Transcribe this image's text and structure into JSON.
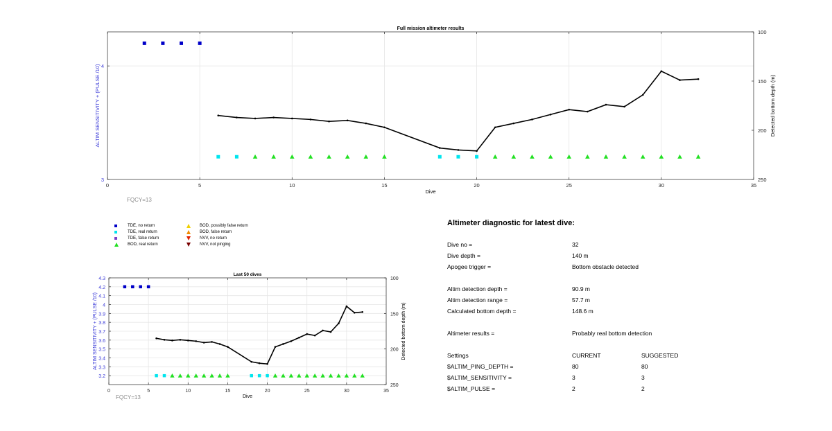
{
  "top_chart": {
    "title": "Full mission altimeter results",
    "xlabel": "Dive",
    "ylabel_left": "ALTIM SENSITIVITY + (PULSE /10)",
    "ylabel_right": "Detected bottom depth (m)",
    "annotation": "FQCY=13"
  },
  "bottom_chart": {
    "title": "Last 50 dives",
    "xlabel": "Dive",
    "ylabel_left": "ALTIM SENSITIVITY + (PULSE /10)",
    "ylabel_right": "Detected bottom depth (m)",
    "annotation": "FQCY=13"
  },
  "legend": {
    "items": [
      {
        "label": "TDE, no return",
        "color": "#0000c8",
        "shape": "square"
      },
      {
        "label": "TDE, real return",
        "color": "#00e5ee",
        "shape": "square"
      },
      {
        "label": "TDE, false return",
        "color": "#7b3fc8",
        "shape": "square"
      },
      {
        "label": "BOD, real return",
        "color": "#22e022",
        "shape": "triangle-up"
      },
      {
        "label": "BOD, possibly false return",
        "color": "#f0d000",
        "shape": "triangle-up"
      },
      {
        "label": "BOD, false return",
        "color": "#f08c00",
        "shape": "triangle-up"
      },
      {
        "label": "NVV, no return",
        "color": "#e02000",
        "shape": "triangle-down"
      },
      {
        "label": "NVV, not pinging",
        "color": "#7a0000",
        "shape": "triangle-down"
      }
    ]
  },
  "diagnostic": {
    "title": "Altimeter diagnostic for latest dive:",
    "rows": [
      {
        "label": "Dive no =",
        "value": "32"
      },
      {
        "label": "Dive depth =",
        "value": "140 m"
      },
      {
        "label": "Apogee trigger =",
        "value": "Bottom obstacle detected"
      },
      {
        "label": "Altim detection depth =",
        "value": "90.9 m"
      },
      {
        "label": "Altim detection range =",
        "value": "57.7 m"
      },
      {
        "label": "Calculated bottom depth =",
        "value": "148.6 m"
      },
      {
        "label": "Altimeter results =",
        "value": "Probably real bottom detection"
      }
    ],
    "settings_header": {
      "label": "Settings",
      "current": "CURRENT",
      "suggested": "SUGGESTED"
    },
    "settings": [
      {
        "label": "$ALTIM_PING_DEPTH =",
        "current": "80",
        "suggested": "80"
      },
      {
        "label": "$ALTIM_SENSITIVITY =",
        "current": "3",
        "suggested": "3"
      },
      {
        "label": "$ALTIM_PULSE =",
        "current": "2",
        "suggested": "2"
      }
    ]
  },
  "chart_data": [
    {
      "type": "scatter",
      "title": "Full mission altimeter results",
      "xlabel": "Dive",
      "ylabel": "ALTIM SENSITIVITY + (PULSE /10)",
      "ylabel_right": "Detected bottom depth (m)",
      "xlim": [
        0,
        35
      ],
      "ylim": [
        3,
        4.3
      ],
      "ylim_right": [
        250,
        100
      ],
      "x_ticks": [
        0,
        5,
        10,
        15,
        20,
        25,
        30,
        35
      ],
      "y_ticks": [
        3,
        4
      ],
      "y_right_ticks": [
        100,
        150,
        200,
        250
      ],
      "grid": true,
      "series": [
        {
          "name": "TDE, no return",
          "marker": "square",
          "color": "#0000c8",
          "x": [
            2,
            3,
            4,
            5
          ],
          "y": [
            4.2,
            4.2,
            4.2,
            4.2
          ]
        },
        {
          "name": "TDE, real return",
          "marker": "square",
          "color": "#00e5ee",
          "x": [
            6,
            7,
            18,
            19,
            20
          ],
          "y": [
            3.2,
            3.2,
            3.2,
            3.2,
            3.2
          ]
        },
        {
          "name": "BOD, real return",
          "marker": "triangle-up",
          "color": "#22e022",
          "x": [
            8,
            9,
            10,
            11,
            12,
            13,
            14,
            15,
            21,
            22,
            23,
            24,
            25,
            26,
            27,
            28,
            29,
            30,
            31,
            32
          ],
          "y": [
            3.2,
            3.2,
            3.2,
            3.2,
            3.2,
            3.2,
            3.2,
            3.2,
            3.2,
            3.2,
            3.2,
            3.2,
            3.2,
            3.2,
            3.2,
            3.2,
            3.2,
            3.2,
            3.2,
            3.2
          ]
        },
        {
          "name": "Detected bottom depth",
          "axis": "right",
          "marker": "line",
          "color": "#000000",
          "x": [
            6,
            7,
            8,
            9,
            10,
            11,
            12,
            13,
            14,
            15,
            18,
            19,
            20,
            21,
            22,
            23,
            24,
            25,
            26,
            27,
            28,
            29,
            30,
            31,
            32
          ],
          "y": [
            185,
            187,
            188,
            187,
            188,
            189,
            191,
            190,
            193,
            197,
            218,
            220,
            221,
            197,
            193,
            189,
            184,
            179,
            181,
            174,
            176,
            164,
            140,
            149,
            148
          ]
        }
      ]
    },
    {
      "type": "scatter",
      "title": "Last 50 dives",
      "xlabel": "Dive",
      "ylabel": "ALTIM SENSITIVITY + (PULSE /10)",
      "ylabel_right": "Detected bottom depth (m)",
      "xlim": [
        0,
        35
      ],
      "ylim": [
        3.1,
        4.3
      ],
      "ylim_right": [
        250,
        100
      ],
      "x_ticks": [
        0,
        5,
        10,
        15,
        20,
        25,
        30,
        35
      ],
      "y_ticks": [
        3.2,
        3.3,
        3.4,
        3.5,
        3.6,
        3.7,
        3.8,
        3.9,
        4,
        4.1,
        4.2,
        4.3
      ],
      "y_right_ticks": [
        100,
        150,
        200,
        250
      ],
      "grid": true,
      "series": [
        {
          "name": "TDE, no return",
          "marker": "square",
          "color": "#0000c8",
          "x": [
            2,
            3,
            4,
            5
          ],
          "y": [
            4.2,
            4.2,
            4.2,
            4.2
          ]
        },
        {
          "name": "TDE, real return",
          "marker": "square",
          "color": "#00e5ee",
          "x": [
            6,
            7,
            18,
            19,
            20
          ],
          "y": [
            3.2,
            3.2,
            3.2,
            3.2,
            3.2
          ]
        },
        {
          "name": "BOD, real return",
          "marker": "triangle-up",
          "color": "#22e022",
          "x": [
            8,
            9,
            10,
            11,
            12,
            13,
            14,
            15,
            21,
            22,
            23,
            24,
            25,
            26,
            27,
            28,
            29,
            30,
            31,
            32
          ],
          "y": [
            3.2,
            3.2,
            3.2,
            3.2,
            3.2,
            3.2,
            3.2,
            3.2,
            3.2,
            3.2,
            3.2,
            3.2,
            3.2,
            3.2,
            3.2,
            3.2,
            3.2,
            3.2,
            3.2,
            3.2
          ]
        },
        {
          "name": "Detected bottom depth",
          "axis": "right",
          "marker": "line",
          "color": "#000000",
          "x": [
            6,
            7,
            8,
            9,
            10,
            11,
            12,
            13,
            14,
            15,
            18,
            19,
            20,
            21,
            22,
            23,
            24,
            25,
            26,
            27,
            28,
            29,
            30,
            31,
            32
          ],
          "y": [
            185,
            187,
            188,
            187,
            188,
            189,
            191,
            190,
            193,
            197,
            218,
            220,
            221,
            197,
            193,
            189,
            184,
            179,
            181,
            174,
            176,
            164,
            140,
            149,
            148
          ]
        }
      ]
    }
  ]
}
